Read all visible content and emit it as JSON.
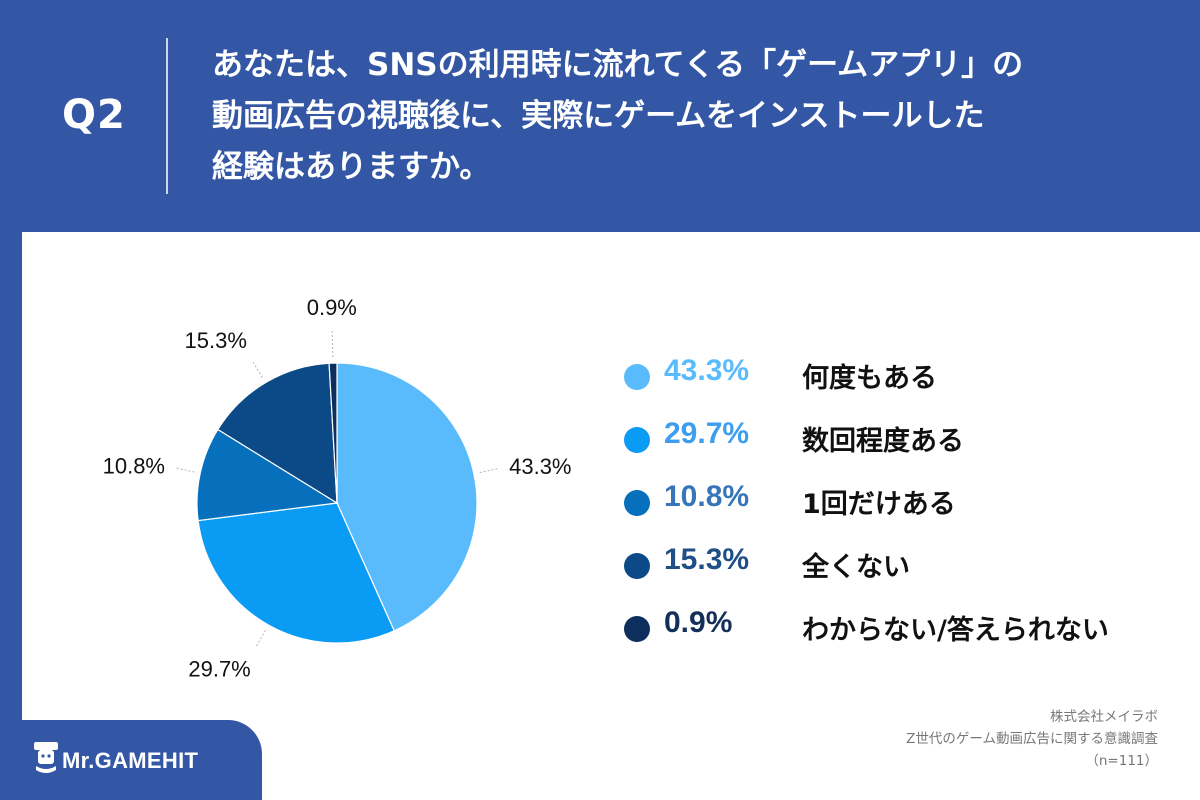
{
  "header": {
    "q_label": "Q2",
    "question_lines": [
      "あなたは、SNSの利用時に流れてくる「ゲームアプリ」の",
      "動画広告の視聴後に、実際にゲームをインストールした",
      "経験はありますか。"
    ]
  },
  "chart_data": {
    "type": "pie",
    "unit": "%",
    "slices": [
      {
        "label": "何度もある",
        "value": 43.3,
        "value_label": "43.3%",
        "color": "#59bbfb",
        "text_color": "#59bbfb"
      },
      {
        "label": "数回程度ある",
        "value": 29.7,
        "value_label": "29.7%",
        "color": "#0a9bf5",
        "text_color": "#3d9ef0"
      },
      {
        "label": "1回だけある",
        "value": 10.8,
        "value_label": "10.8%",
        "color": "#0770bc",
        "text_color": "#3575b8"
      },
      {
        "label": "全くない",
        "value": 15.3,
        "value_label": "15.3%",
        "color": "#0b4a86",
        "text_color": "#1e4f86"
      },
      {
        "label": "わからない/答えられない",
        "value": 0.9,
        "value_label": "0.9%",
        "color": "#0e2f5d",
        "text_color": "#142f5a"
      }
    ],
    "start_angle_deg": 0,
    "direction": "clockwise",
    "legend_placement": "right"
  },
  "source": {
    "lines": [
      "株式会社メイラボ",
      "Z世代のゲーム動画広告に関する意識調査",
      "（n=111）"
    ]
  },
  "logo": {
    "text": "Mr.GAMEHIT",
    "icon": "mascot-icon"
  }
}
